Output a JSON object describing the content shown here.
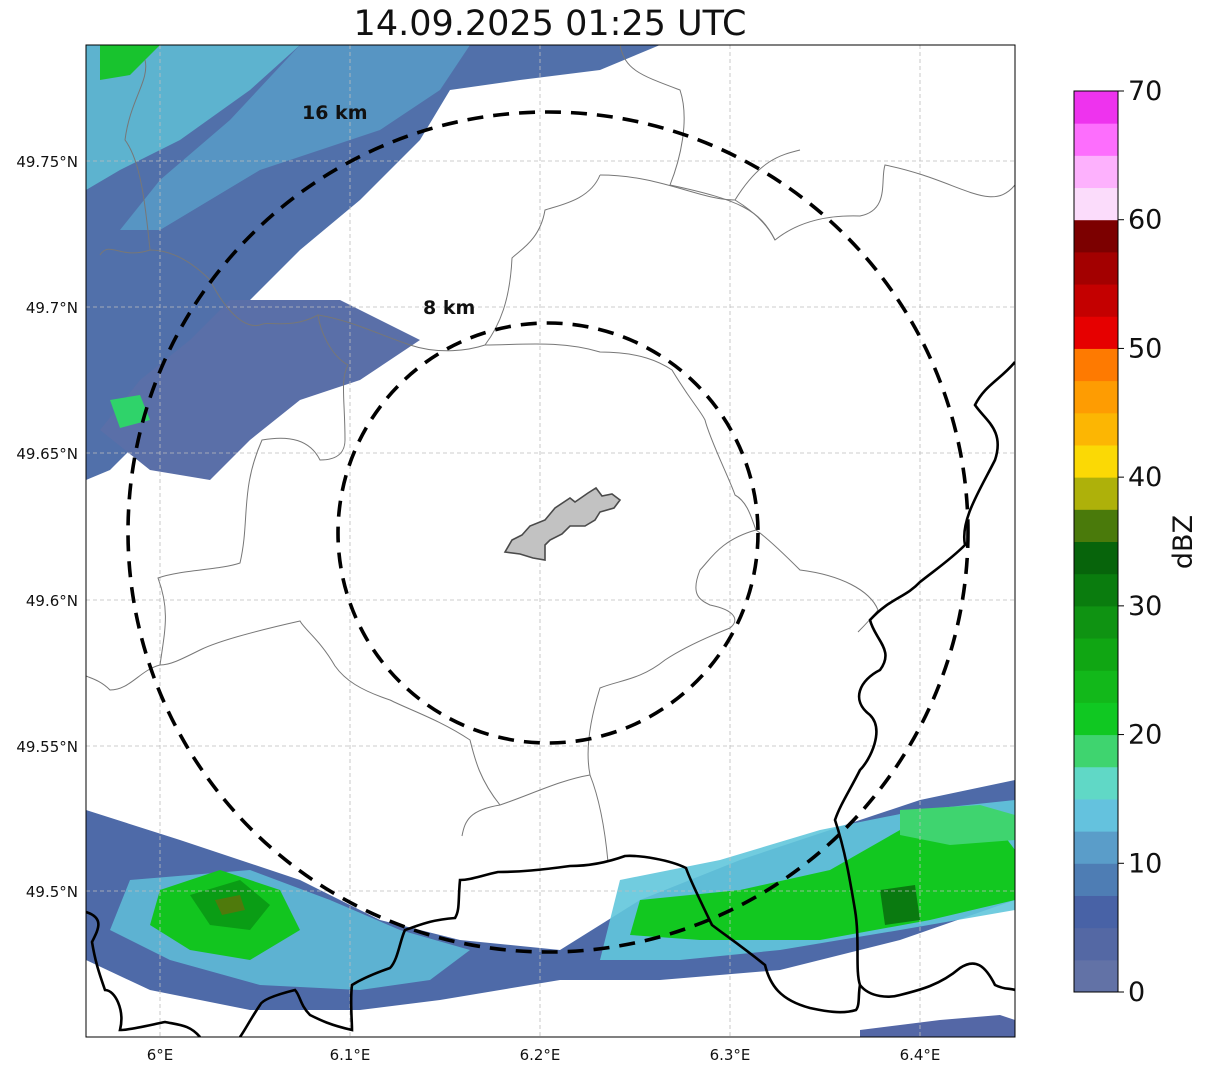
{
  "title": "14.09.2025 01:25 UTC",
  "map": {
    "lon_ticks": [
      {
        "value": 6.0,
        "label": "6°E"
      },
      {
        "value": 6.1,
        "label": "6.1°E"
      },
      {
        "value": 6.2,
        "label": "6.2°E"
      },
      {
        "value": 6.3,
        "label": "6.3°E"
      },
      {
        "value": 6.4,
        "label": "6.4°E"
      }
    ],
    "lat_ticks": [
      {
        "value": 49.75,
        "label": "49.75°N"
      },
      {
        "value": 49.7,
        "label": "49.7°N"
      },
      {
        "value": 49.65,
        "label": "49.65°N"
      },
      {
        "value": 49.6,
        "label": "49.6°N"
      },
      {
        "value": 49.55,
        "label": "49.55°N"
      },
      {
        "value": 49.5,
        "label": "49.5°N"
      }
    ],
    "lon_range": [
      5.96,
      6.45
    ],
    "lat_range": [
      49.45,
      49.79
    ],
    "gridlines": true,
    "range_rings": [
      {
        "label": "8 km",
        "radius_km": 8
      },
      {
        "label": "16 km",
        "radius_km": 16
      }
    ],
    "center_feature": "gray-urban-polygon"
  },
  "colorbar": {
    "label": "dBZ",
    "min": 0,
    "max": 70,
    "ticks": [
      {
        "value": 0,
        "label": "0"
      },
      {
        "value": 10,
        "label": "10"
      },
      {
        "value": 20,
        "label": "20"
      },
      {
        "value": 30,
        "label": "30"
      },
      {
        "value": 40,
        "label": "40"
      },
      {
        "value": 50,
        "label": "50"
      },
      {
        "value": 60,
        "label": "60"
      },
      {
        "value": 70,
        "label": "70"
      }
    ],
    "colors": [
      "#6272a6",
      "#5468a4",
      "#4862a6",
      "#4e7db4",
      "#5a9dc9",
      "#64c2de",
      "#60d8c6",
      "#3fd46f",
      "#10c822",
      "#12b81a",
      "#10a613",
      "#0f9312",
      "#0a7c0e",
      "#07640b",
      "#4a7a0b",
      "#aeb10a",
      "#fbd905",
      "#fcb603",
      "#fe9c02",
      "#fe7a01",
      "#e60000",
      "#c40000",
      "#a30000",
      "#7c0000",
      "#fbdcfb",
      "#fdb1fd",
      "#fd6efd",
      "#ee33ee"
    ]
  }
}
